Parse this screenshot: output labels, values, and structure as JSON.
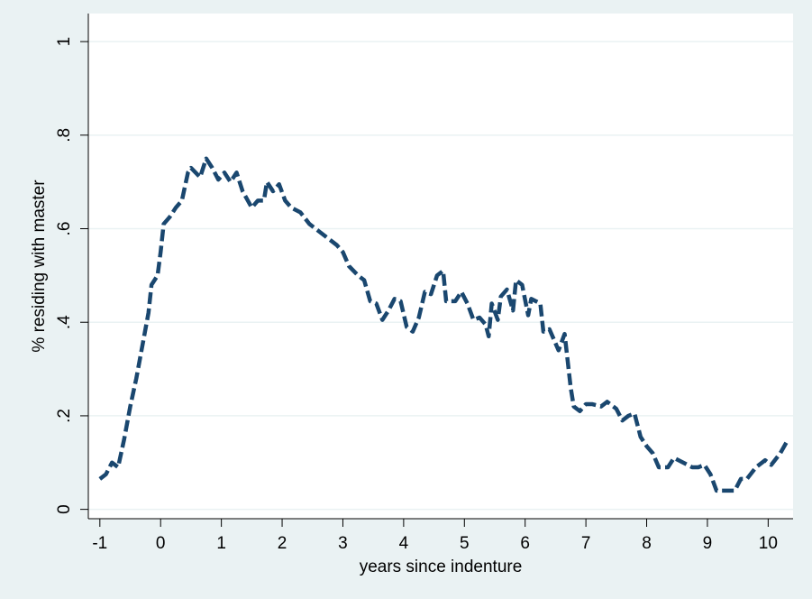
{
  "chart_data": {
    "type": "line",
    "xlabel": "years since indenture",
    "ylabel": "% residing with master",
    "x": [
      -1.0,
      -0.9,
      -0.8,
      -0.7,
      -0.6,
      -0.5,
      -0.4,
      -0.3,
      -0.2,
      -0.15,
      -0.05,
      0.0,
      0.05,
      0.15,
      0.25,
      0.35,
      0.45,
      0.5,
      0.65,
      0.75,
      0.85,
      0.95,
      1.05,
      1.15,
      1.25,
      1.35,
      1.5,
      1.6,
      1.7,
      1.75,
      1.85,
      1.95,
      2.05,
      2.15,
      2.3,
      2.45,
      2.6,
      2.75,
      2.9,
      3.0,
      3.1,
      3.25,
      3.35,
      3.45,
      3.55,
      3.65,
      3.75,
      3.85,
      3.95,
      4.05,
      4.15,
      4.25,
      4.35,
      4.45,
      4.55,
      4.65,
      4.7,
      4.85,
      4.95,
      5.05,
      5.15,
      5.25,
      5.35,
      5.4,
      5.45,
      5.55,
      5.6,
      5.7,
      5.8,
      5.85,
      5.95,
      6.05,
      6.1,
      6.25,
      6.3,
      6.4,
      6.5,
      6.55,
      6.65,
      6.75,
      6.8,
      6.9,
      7.0,
      7.1,
      7.25,
      7.35,
      7.5,
      7.6,
      7.7,
      7.8,
      7.9,
      8.0,
      8.1,
      8.2,
      8.35,
      8.45,
      8.6,
      8.75,
      8.85,
      8.95,
      9.05,
      9.15,
      9.3,
      9.45,
      9.55,
      9.65,
      9.8,
      9.95,
      10.05,
      10.2,
      10.33
    ],
    "series": [
      {
        "color": "#1a476f",
        "values": [
          0.065,
          0.075,
          0.1,
          0.09,
          0.15,
          0.22,
          0.28,
          0.35,
          0.42,
          0.48,
          0.5,
          0.55,
          0.61,
          0.625,
          0.645,
          0.66,
          0.72,
          0.73,
          0.71,
          0.75,
          0.73,
          0.705,
          0.72,
          0.7,
          0.72,
          0.68,
          0.645,
          0.66,
          0.66,
          0.7,
          0.68,
          0.695,
          0.66,
          0.645,
          0.635,
          0.61,
          0.595,
          0.58,
          0.565,
          0.55,
          0.52,
          0.5,
          0.49,
          0.445,
          0.44,
          0.405,
          0.425,
          0.45,
          0.445,
          0.39,
          0.38,
          0.41,
          0.465,
          0.46,
          0.5,
          0.51,
          0.445,
          0.445,
          0.465,
          0.44,
          0.405,
          0.41,
          0.395,
          0.37,
          0.44,
          0.405,
          0.455,
          0.47,
          0.425,
          0.49,
          0.48,
          0.415,
          0.45,
          0.44,
          0.38,
          0.385,
          0.355,
          0.34,
          0.375,
          0.26,
          0.22,
          0.21,
          0.225,
          0.225,
          0.22,
          0.23,
          0.215,
          0.19,
          0.2,
          0.205,
          0.155,
          0.135,
          0.12,
          0.09,
          0.09,
          0.11,
          0.1,
          0.09,
          0.09,
          0.095,
          0.075,
          0.04,
          0.04,
          0.04,
          0.065,
          0.065,
          0.09,
          0.105,
          0.095,
          0.12,
          0.15
        ]
      }
    ],
    "xlim": [
      -1.19,
      10.41
    ],
    "xticks": [
      -1,
      0,
      1,
      2,
      3,
      4,
      5,
      6,
      7,
      8,
      9,
      10
    ],
    "ylim": [
      -0.02,
      1.06
    ],
    "yticks": [
      0,
      {
        "value": 0.2,
        "label": ".2"
      },
      {
        "value": 0.4,
        "label": ".4"
      },
      {
        "value": 0.6,
        "label": ".6"
      },
      {
        "value": 0.8,
        "label": ".8"
      },
      1
    ],
    "grid": true
  }
}
